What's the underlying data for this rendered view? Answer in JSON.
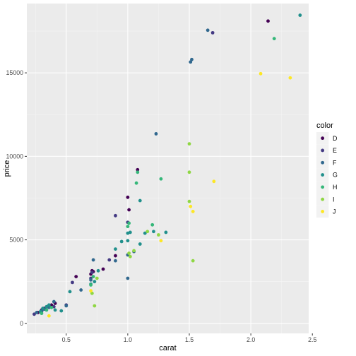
{
  "chart_data": {
    "type": "scatter",
    "title": "",
    "xlabel": "carat",
    "ylabel": "price",
    "xlim": [
      0.18,
      2.47
    ],
    "ylim": [
      -600,
      19150
    ],
    "x_ticks": [
      0.5,
      1.0,
      1.5,
      2.0,
      2.5
    ],
    "x_tick_labels": [
      "0.5",
      "1.0",
      "1.5",
      "2.0",
      "2.5"
    ],
    "y_ticks": [
      0,
      5000,
      10000,
      15000
    ],
    "y_tick_labels": [
      "0",
      "5000",
      "10000",
      "15000"
    ],
    "grid": true,
    "legend_position": "right",
    "legend_title": "color",
    "colors": {
      "panel": "#ebebeb",
      "grid_major": "#ffffff",
      "grid_minor": "#f5f5f5",
      "legend_key": "#f2f2f2"
    },
    "series": [
      {
        "name": "D",
        "color": "#440154",
        "points": [
          [
            0.27,
            650
          ],
          [
            0.3,
            800
          ],
          [
            0.32,
            900
          ],
          [
            0.38,
            1100
          ],
          [
            0.41,
            1200
          ],
          [
            0.58,
            2800
          ],
          [
            0.7,
            2950
          ],
          [
            0.71,
            3150
          ],
          [
            0.72,
            3100
          ],
          [
            0.8,
            3250
          ],
          [
            0.9,
            4050
          ],
          [
            1.0,
            7550
          ],
          [
            1.01,
            6800
          ],
          [
            1.08,
            9200
          ],
          [
            2.14,
            18100
          ]
        ]
      },
      {
        "name": "E",
        "color": "#443a83",
        "points": [
          [
            0.24,
            550
          ],
          [
            0.3,
            700
          ],
          [
            0.33,
            850
          ],
          [
            0.35,
            1000
          ],
          [
            0.4,
            1000
          ],
          [
            0.5,
            1100
          ],
          [
            0.55,
            2450
          ],
          [
            0.7,
            2700
          ],
          [
            0.71,
            3050
          ],
          [
            0.85,
            3800
          ],
          [
            0.9,
            6450
          ],
          [
            1.0,
            6050
          ],
          [
            1.69,
            17400
          ]
        ]
      },
      {
        "name": "F",
        "color": "#31688e",
        "points": [
          [
            0.26,
            650
          ],
          [
            0.3,
            750
          ],
          [
            0.32,
            850
          ],
          [
            0.36,
            950
          ],
          [
            0.4,
            1300
          ],
          [
            0.5,
            1050
          ],
          [
            0.62,
            2000
          ],
          [
            0.7,
            2600
          ],
          [
            0.72,
            3800
          ],
          [
            0.9,
            3750
          ],
          [
            1.0,
            2700
          ],
          [
            1.0,
            4100
          ],
          [
            1.05,
            4300
          ],
          [
            1.23,
            11350
          ],
          [
            1.51,
            15650
          ],
          [
            1.52,
            15800
          ],
          [
            1.65,
            17550
          ]
        ]
      },
      {
        "name": "G",
        "color": "#21908c",
        "points": [
          [
            0.29,
            700
          ],
          [
            0.31,
            900
          ],
          [
            0.34,
            1000
          ],
          [
            0.36,
            1100
          ],
          [
            0.41,
            800
          ],
          [
            0.46,
            750
          ],
          [
            0.53,
            1900
          ],
          [
            0.7,
            2350
          ],
          [
            0.73,
            2500
          ],
          [
            0.76,
            3150
          ],
          [
            0.9,
            4450
          ],
          [
            0.95,
            4900
          ],
          [
            1.0,
            4950
          ],
          [
            1.0,
            5400
          ],
          [
            1.02,
            5450
          ],
          [
            1.1,
            4750
          ],
          [
            1.1,
            7350
          ],
          [
            1.14,
            5400
          ],
          [
            1.21,
            5500
          ],
          [
            1.31,
            5450
          ],
          [
            2.4,
            18450
          ]
        ]
      },
      {
        "name": "H",
        "color": "#35b779",
        "points": [
          [
            0.3,
            600
          ],
          [
            0.34,
            800
          ],
          [
            0.38,
            950
          ],
          [
            0.7,
            2300
          ],
          [
            0.72,
            2800
          ],
          [
            1.0,
            5800
          ],
          [
            1.01,
            6000
          ],
          [
            1.07,
            8400
          ],
          [
            1.08,
            9050
          ],
          [
            1.2,
            5900
          ],
          [
            1.27,
            8650
          ],
          [
            2.19,
            17050
          ]
        ]
      },
      {
        "name": "I",
        "color": "#8fd744",
        "points": [
          [
            0.71,
            1800
          ],
          [
            0.73,
            1050
          ],
          [
            0.75,
            2700
          ],
          [
            1.01,
            4200
          ],
          [
            1.02,
            4000
          ],
          [
            1.05,
            4350
          ],
          [
            1.16,
            5500
          ],
          [
            1.25,
            5300
          ],
          [
            1.5,
            10750
          ],
          [
            1.5,
            9050
          ],
          [
            1.5,
            7300
          ],
          [
            1.53,
            3750
          ]
        ]
      },
      {
        "name": "J",
        "color": "#fde725",
        "points": [
          [
            0.36,
            450
          ],
          [
            0.7,
            1950
          ],
          [
            1.27,
            4950
          ],
          [
            1.51,
            7000
          ],
          [
            1.53,
            6700
          ],
          [
            1.7,
            8500
          ],
          [
            2.08,
            14950
          ],
          [
            2.32,
            14700
          ]
        ]
      }
    ]
  }
}
